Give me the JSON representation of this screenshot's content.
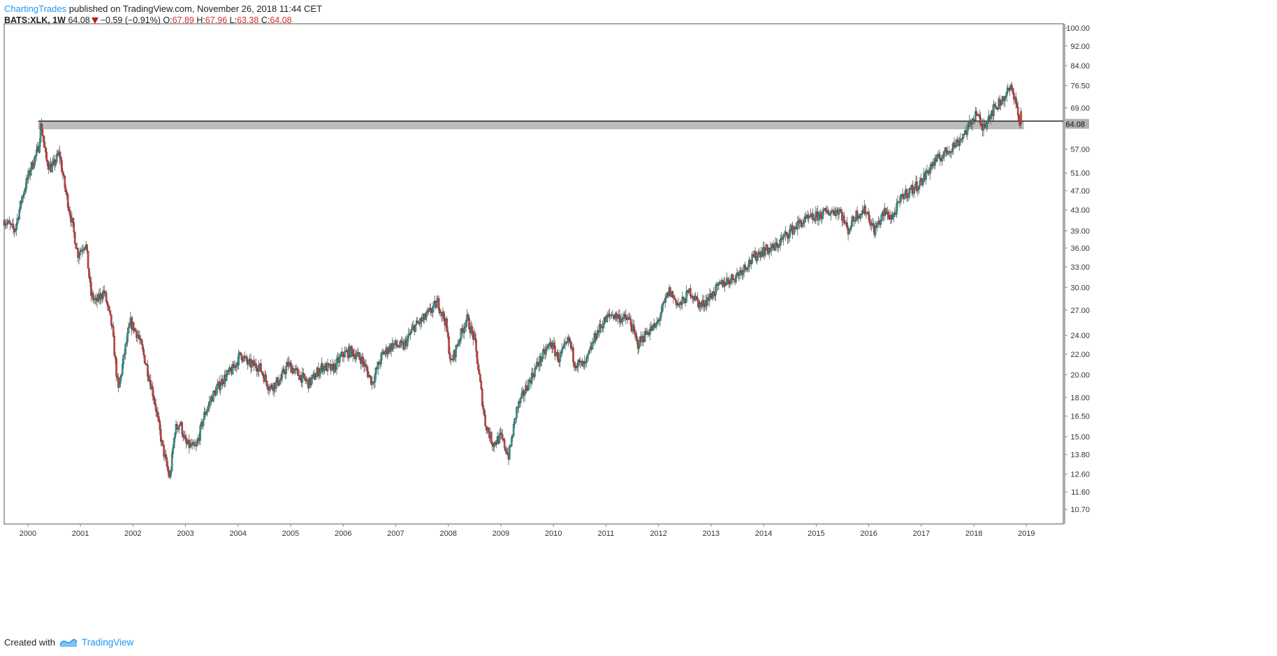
{
  "header": {
    "author": "ChartingTrades",
    "published": "published on TradingView.com, November 26, 2018 11:44 CET",
    "symbol": "BATS:XLK, 1W",
    "last": "64.08",
    "change": "−0.59 (−0.91%)",
    "open_label": "O:",
    "open": "67.89",
    "high_label": "H:",
    "high": "67.96",
    "low_label": "L:",
    "low": "63.38",
    "close_label": "C:",
    "close": "64.08"
  },
  "footer": {
    "created_with": "Created with",
    "brand": "TradingView"
  },
  "colors": {
    "up": "#26a69a",
    "down": "#e53935",
    "wick": "#555555",
    "axis": "#888888",
    "zone": "#b0b0b0",
    "resistance": "#222222"
  },
  "chart_data": {
    "type": "candlestick",
    "title": "",
    "xlabel": "",
    "ylabel": "",
    "scale": "log",
    "ylim": [
      10.0,
      102.0
    ],
    "xlim": [
      1999.55,
      2019.7
    ],
    "x_ticks": [
      "2000",
      "2001",
      "2002",
      "2003",
      "2004",
      "2005",
      "2006",
      "2007",
      "2008",
      "2009",
      "2010",
      "2011",
      "2012",
      "2013",
      "2014",
      "2015",
      "2016",
      "2017",
      "2018",
      "2019"
    ],
    "y_ticks": [
      "100.00",
      "92.00",
      "84.00",
      "76.50",
      "69.00",
      "64.08",
      "57.00",
      "51.00",
      "47.00",
      "43.00",
      "39.00",
      "36.00",
      "33.00",
      "30.00",
      "27.00",
      "24.00",
      "22.00",
      "20.00",
      "18.00",
      "16.50",
      "15.00",
      "13.80",
      "12.60",
      "11.60",
      "10.70"
    ],
    "last_price_label": "64.08",
    "resistance_level": 64.9,
    "zone": [
      62.5,
      64.9
    ],
    "price_path": [
      [
        1999.55,
        41.0
      ],
      [
        1999.75,
        39.0
      ],
      [
        1999.9,
        46.0
      ],
      [
        2000.05,
        52.0
      ],
      [
        2000.2,
        57.0
      ],
      [
        2000.25,
        64.5
      ],
      [
        2000.35,
        54.0
      ],
      [
        2000.45,
        52.0
      ],
      [
        2000.6,
        56.0
      ],
      [
        2000.7,
        48.0
      ],
      [
        2000.85,
        40.0
      ],
      [
        2000.95,
        35.0
      ],
      [
        2001.1,
        37.0
      ],
      [
        2001.2,
        29.0
      ],
      [
        2001.3,
        28.0
      ],
      [
        2001.45,
        29.5
      ],
      [
        2001.6,
        25.0
      ],
      [
        2001.72,
        18.5
      ],
      [
        2001.85,
        22.5
      ],
      [
        2001.95,
        25.5
      ],
      [
        2002.1,
        24.0
      ],
      [
        2002.25,
        21.0
      ],
      [
        2002.4,
        18.0
      ],
      [
        2002.55,
        14.5
      ],
      [
        2002.7,
        12.3
      ],
      [
        2002.8,
        15.5
      ],
      [
        2002.9,
        16.0
      ],
      [
        2003.0,
        14.5
      ],
      [
        2003.2,
        14.2
      ],
      [
        2003.35,
        16.5
      ],
      [
        2003.5,
        18.0
      ],
      [
        2003.7,
        19.5
      ],
      [
        2003.9,
        20.5
      ],
      [
        2004.05,
        22.0
      ],
      [
        2004.2,
        21.0
      ],
      [
        2004.4,
        20.8
      ],
      [
        2004.6,
        18.8
      ],
      [
        2004.8,
        19.5
      ],
      [
        2004.95,
        21.0
      ],
      [
        2005.15,
        20.0
      ],
      [
        2005.35,
        19.2
      ],
      [
        2005.6,
        20.8
      ],
      [
        2005.8,
        20.5
      ],
      [
        2006.0,
        22.0
      ],
      [
        2006.15,
        22.3
      ],
      [
        2006.35,
        21.5
      ],
      [
        2006.55,
        19.3
      ],
      [
        2006.75,
        22.0
      ],
      [
        2006.95,
        23.0
      ],
      [
        2007.15,
        22.8
      ],
      [
        2007.35,
        25.0
      ],
      [
        2007.55,
        26.0
      ],
      [
        2007.8,
        28.0
      ],
      [
        2007.95,
        25.5
      ],
      [
        2008.05,
        21.0
      ],
      [
        2008.2,
        23.5
      ],
      [
        2008.35,
        26.0
      ],
      [
        2008.5,
        23.5
      ],
      [
        2008.7,
        16.0
      ],
      [
        2008.85,
        14.5
      ],
      [
        2009.0,
        15.0
      ],
      [
        2009.15,
        13.7
      ],
      [
        2009.3,
        17.0
      ],
      [
        2009.5,
        19.0
      ],
      [
        2009.7,
        21.0
      ],
      [
        2009.95,
        23.2
      ],
      [
        2010.1,
        21.5
      ],
      [
        2010.3,
        23.5
      ],
      [
        2010.4,
        21.2
      ],
      [
        2010.6,
        20.8
      ],
      [
        2010.8,
        24.0
      ],
      [
        2010.95,
        25.5
      ],
      [
        2011.1,
        26.5
      ],
      [
        2011.3,
        26.0
      ],
      [
        2011.45,
        25.8
      ],
      [
        2011.6,
        23.0
      ],
      [
        2011.8,
        24.5
      ],
      [
        2011.95,
        25.0
      ],
      [
        2012.2,
        29.5
      ],
      [
        2012.4,
        27.5
      ],
      [
        2012.6,
        29.5
      ],
      [
        2012.8,
        27.5
      ],
      [
        2012.95,
        28.5
      ],
      [
        2013.2,
        30.5
      ],
      [
        2013.45,
        31.5
      ],
      [
        2013.7,
        33.5
      ],
      [
        2013.95,
        35.5
      ],
      [
        2014.2,
        36.0
      ],
      [
        2014.45,
        38.5
      ],
      [
        2014.7,
        40.5
      ],
      [
        2014.95,
        41.5
      ],
      [
        2015.2,
        42.5
      ],
      [
        2015.45,
        43.0
      ],
      [
        2015.6,
        39.0
      ],
      [
        2015.75,
        42.0
      ],
      [
        2015.95,
        43.0
      ],
      [
        2016.1,
        39.0
      ],
      [
        2016.3,
        42.5
      ],
      [
        2016.45,
        41.5
      ],
      [
        2016.65,
        46.0
      ],
      [
        2016.85,
        47.5
      ],
      [
        2017.0,
        49.0
      ],
      [
        2017.2,
        53.0
      ],
      [
        2017.45,
        56.0
      ],
      [
        2017.7,
        59.0
      ],
      [
        2017.9,
        63.0
      ],
      [
        2018.05,
        68.0
      ],
      [
        2018.15,
        62.5
      ],
      [
        2018.3,
        67.0
      ],
      [
        2018.5,
        71.0
      ],
      [
        2018.7,
        75.5
      ],
      [
        2018.78,
        73.0
      ],
      [
        2018.86,
        64.5
      ],
      [
        2018.9,
        64.08
      ]
    ]
  }
}
